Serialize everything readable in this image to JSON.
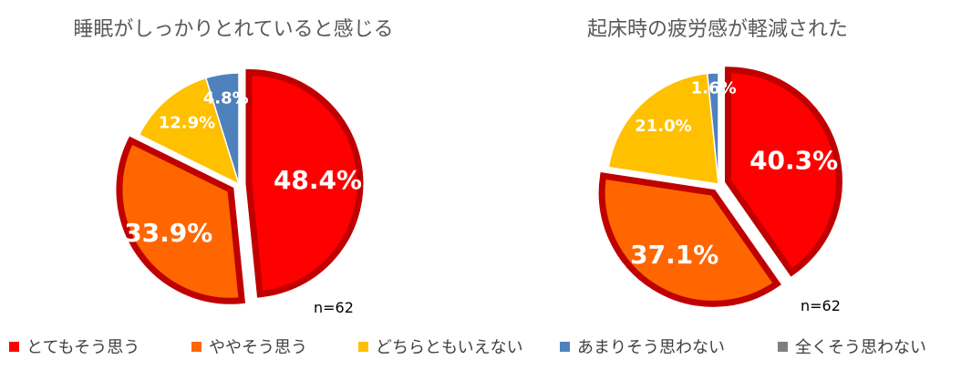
{
  "chart_data": [
    {
      "type": "pie",
      "title": "睡眠がしっかりとれていると感じる",
      "note": "n=62",
      "slices": [
        {
          "label": "とてもそう思う",
          "value": 48.4,
          "display": "48.4%"
        },
        {
          "label": "ややそう思う",
          "value": 33.9,
          "display": "33.9%"
        },
        {
          "label": "どちらともいえない",
          "value": 12.9,
          "display": "12.9%"
        },
        {
          "label": "あまりそう思わない",
          "value": 4.8,
          "display": "4.8%"
        },
        {
          "label": "全くそう思わない",
          "value": 0,
          "display": ""
        }
      ]
    },
    {
      "type": "pie",
      "title": "起床時の疲労感が軽減された",
      "note": "n=62",
      "slices": [
        {
          "label": "とてもそう思う",
          "value": 40.3,
          "display": "40.3%"
        },
        {
          "label": "ややそう思う",
          "value": 37.1,
          "display": "37.1%"
        },
        {
          "label": "どちらともいえない",
          "value": 21.0,
          "display": "21.0%"
        },
        {
          "label": "あまりそう思わない",
          "value": 1.6,
          "display": "1.6%"
        },
        {
          "label": "全くそう思わない",
          "value": 0,
          "display": ""
        }
      ]
    }
  ],
  "legend": [
    {
      "label": "とてもそう思う",
      "color": "#FF0000"
    },
    {
      "label": "ややそう思う",
      "color": "#FF6600"
    },
    {
      "label": "どちらともいえない",
      "color": "#FFC000"
    },
    {
      "label": "あまりそう思わない",
      "color": "#4F81BD"
    },
    {
      "label": "全くそう思わない",
      "color": "#7F7F7F"
    }
  ],
  "highlight_color": "#C00000"
}
